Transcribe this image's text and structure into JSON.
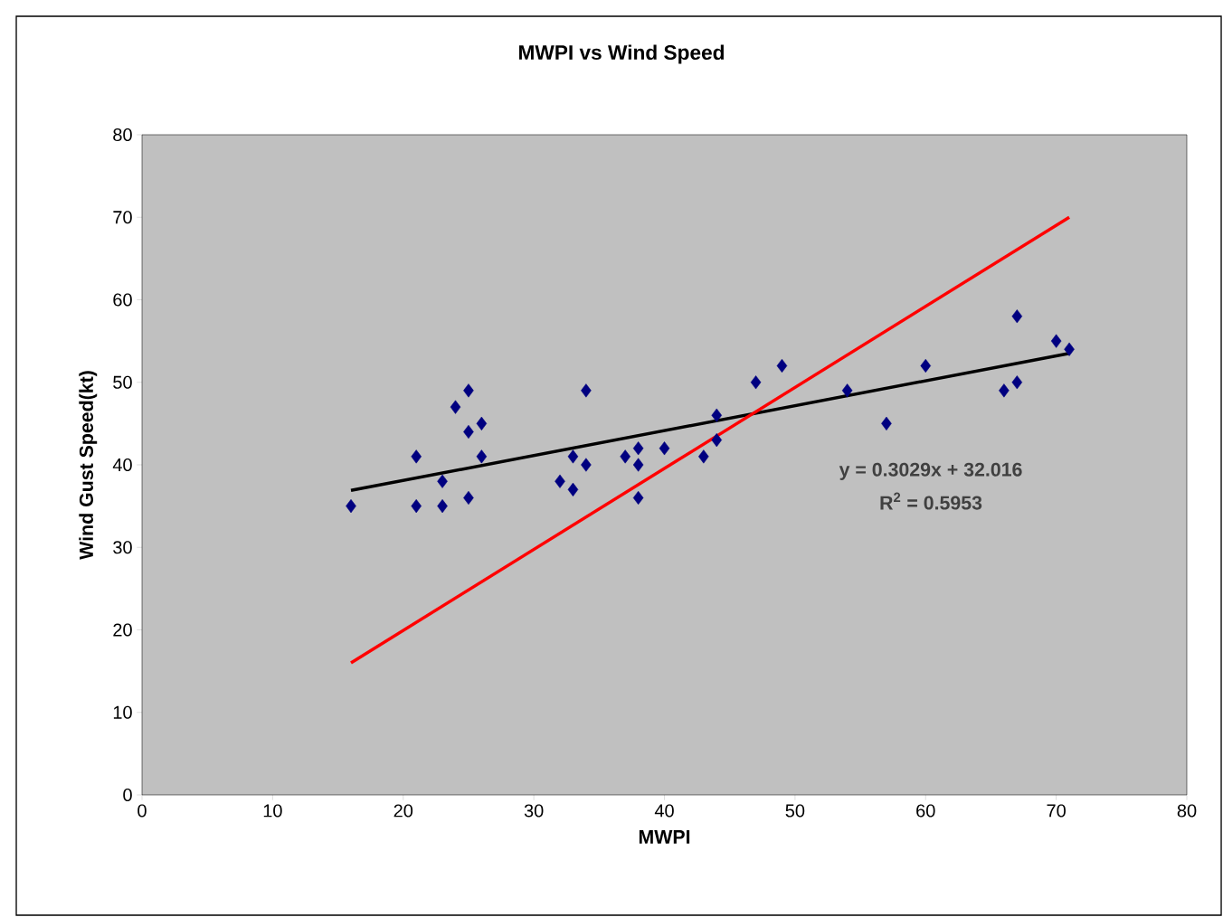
{
  "chart_data": {
    "type": "scatter",
    "title": "MWPI vs Wind Speed",
    "xlabel": "MWPI",
    "ylabel": "Wind Gust Speed(kt)",
    "xlim": [
      0,
      80
    ],
    "ylim": [
      0,
      80
    ],
    "xticks": [
      0,
      10,
      20,
      30,
      40,
      50,
      60,
      70,
      80
    ],
    "yticks": [
      0,
      10,
      20,
      30,
      40,
      50,
      60,
      70,
      80
    ],
    "grid": false,
    "series": [
      {
        "marker": "diamond",
        "color": "#000080",
        "x": [
          16,
          21,
          21,
          23,
          23,
          24,
          25,
          25,
          25,
          26,
          26,
          32,
          33,
          33,
          34,
          34,
          37,
          38,
          38,
          38,
          40,
          43,
          44,
          44,
          47,
          49,
          54,
          57,
          60,
          66,
          67,
          67,
          70,
          71
        ],
        "values": [
          35,
          41,
          35,
          38,
          35,
          47,
          49,
          44,
          36,
          45,
          41,
          38,
          41,
          37,
          49,
          40,
          41,
          42,
          40,
          36,
          42,
          41,
          46,
          43,
          50,
          52,
          49,
          45,
          52,
          49,
          50,
          58,
          55,
          54
        ]
      },
      {
        "type": "line",
        "marker": "none",
        "color": "#000000",
        "x": [
          16,
          71
        ],
        "values": [
          36.9,
          53.5
        ]
      },
      {
        "type": "line",
        "marker": "none",
        "color": "#ff0000",
        "x": [
          16,
          71
        ],
        "values": [
          16,
          70
        ]
      }
    ],
    "annotations": [
      "y = 0.3029x + 32.016",
      "R$^{2}$ = 0.5953"
    ]
  }
}
